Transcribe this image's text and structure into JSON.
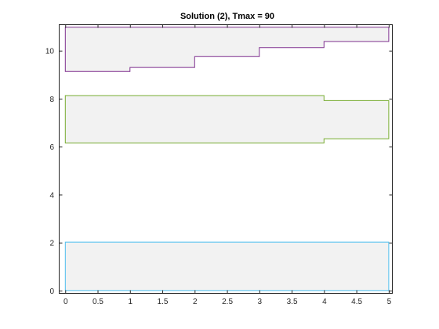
{
  "chart_data": {
    "type": "area",
    "title": "Solution (2), Tmax = 90",
    "xlabel": "",
    "ylabel": "",
    "xlim": [
      -0.1,
      5.05
    ],
    "ylim": [
      -0.1,
      11.1
    ],
    "x_ticks": [
      0,
      0.5,
      1,
      1.5,
      2,
      2.5,
      3,
      3.5,
      4,
      4.5,
      5
    ],
    "x_tick_labels": [
      "0",
      "0.5",
      "1",
      "1.5",
      "2",
      "2.5",
      "3",
      "3.5",
      "4",
      "4.5",
      "5"
    ],
    "y_ticks": [
      0,
      2,
      4,
      6,
      8,
      10
    ],
    "y_tick_labels": [
      "0",
      "2",
      "4",
      "6",
      "8",
      "10"
    ],
    "grid": false,
    "fill_color": "#f2f2f2",
    "bands": [
      {
        "color": "#4dbeee",
        "x": [
          0,
          1,
          2,
          3,
          4,
          5
        ],
        "lower": [
          0,
          0,
          0,
          0,
          0,
          0
        ],
        "upper": [
          2.02,
          2.02,
          2.02,
          2.02,
          2.02,
          2.02
        ]
      },
      {
        "color": "#77ac30",
        "x": [
          0,
          1,
          2,
          3,
          4,
          5
        ],
        "lower": [
          6.15,
          6.15,
          6.15,
          6.15,
          6.33,
          6.33
        ],
        "upper": [
          8.13,
          8.13,
          8.13,
          8.13,
          7.92,
          7.92
        ]
      },
      {
        "color": "#7e2f8e",
        "x": [
          0,
          1,
          2,
          3,
          4,
          5
        ],
        "lower": [
          9.13,
          9.3,
          9.75,
          10.13,
          10.38,
          10.38
        ],
        "upper": [
          10.98,
          10.98,
          10.98,
          10.98,
          10.98,
          10.98
        ]
      }
    ]
  }
}
